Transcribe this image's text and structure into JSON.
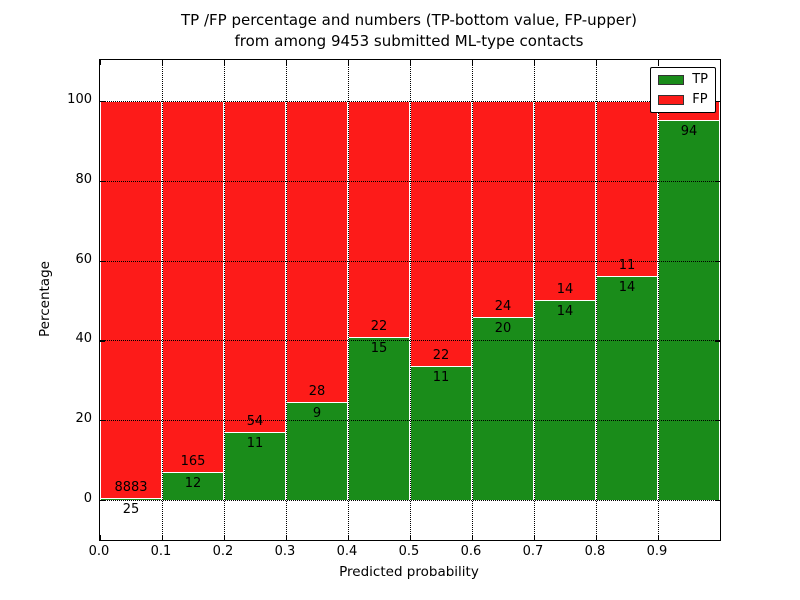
{
  "chart_data": {
    "type": "bar",
    "stacked": true,
    "orientation": "vertical",
    "title_line1": "TP /FP percentage and numbers (TP-bottom value, FP-upper)",
    "title_line2": "from among 9453 submitted ML-type contacts",
    "xlabel": "Predicted probability",
    "ylabel": "Percentage",
    "x_tick_labels": [
      "0.0",
      "0.1",
      "0.2",
      "0.3",
      "0.4",
      "0.5",
      "0.6",
      "0.7",
      "0.8",
      "0.9"
    ],
    "y_tick_labels": [
      "0",
      "20",
      "40",
      "60",
      "80",
      "100"
    ],
    "y_tick_values": [
      0,
      20,
      40,
      60,
      80,
      100
    ],
    "xlim": [
      0.0,
      1.0
    ],
    "ylim": [
      -10,
      110
    ],
    "grid": true,
    "grid_style": "dotted",
    "legend": {
      "position": "upper right",
      "entries": [
        {
          "label": "TP",
          "color": "#1a8c1a"
        },
        {
          "label": "FP",
          "color": "#fd1b19"
        }
      ]
    },
    "bars": [
      {
        "bin": "0.0-0.1",
        "tp_count": 25,
        "fp_count": 8883,
        "tp_pct": 0.3,
        "fp_pct": 99.7
      },
      {
        "bin": "0.1-0.2",
        "tp_count": 12,
        "fp_count": 165,
        "tp_pct": 6.8,
        "fp_pct": 93.2
      },
      {
        "bin": "0.2-0.3",
        "tp_count": 11,
        "fp_count": 54,
        "tp_pct": 16.9,
        "fp_pct": 83.1
      },
      {
        "bin": "0.3-0.4",
        "tp_count": 9,
        "fp_count": 28,
        "tp_pct": 24.3,
        "fp_pct": 75.7
      },
      {
        "bin": "0.4-0.5",
        "tp_count": 15,
        "fp_count": 22,
        "tp_pct": 40.5,
        "fp_pct": 59.5
      },
      {
        "bin": "0.5-0.6",
        "tp_count": 11,
        "fp_count": 22,
        "tp_pct": 33.3,
        "fp_pct": 66.7
      },
      {
        "bin": "0.6-0.7",
        "tp_count": 20,
        "fp_count": 24,
        "tp_pct": 45.5,
        "fp_pct": 54.5
      },
      {
        "bin": "0.7-0.8",
        "tp_count": 14,
        "fp_count": 14,
        "tp_pct": 50.0,
        "fp_pct": 50.0
      },
      {
        "bin": "0.8-0.9",
        "tp_count": 14,
        "fp_count": 11,
        "tp_pct": 56.0,
        "fp_pct": 44.0
      },
      {
        "bin": "0.9-1.0",
        "tp_count": 94,
        "fp_count": null,
        "tp_pct": 94.9,
        "fp_pct": 5.1
      }
    ]
  },
  "colors": {
    "tp": "#1a8c1a",
    "fp": "#fd1b19",
    "grid": "#000000",
    "axis": "#000000",
    "background": "#ffffff"
  }
}
